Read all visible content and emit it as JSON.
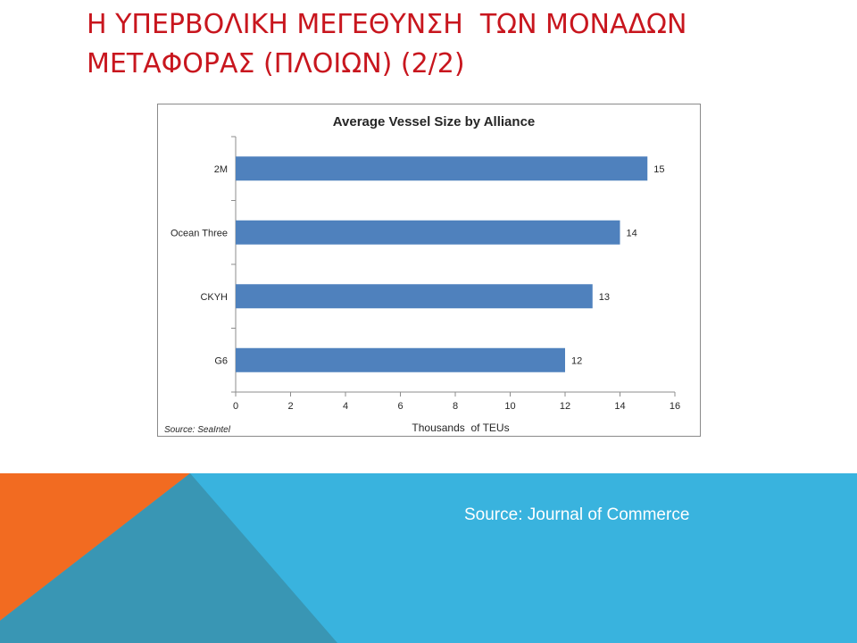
{
  "slide": {
    "title_lines": [
      "Η ΥΠΕΡΒΟΛΙΚΗ ΜΕΓΕΘΥΝΣΗ  ΤΩΝ ΜΟΝΑΔΩΝ",
      "ΜΕΤΑΦΟΡΑΣ (ΠΛΟΙΩΝ) (2/2)"
    ],
    "source_caption": "Source: Journal of Commerce",
    "colors": {
      "title": "#c8161e",
      "orange": "#f26b21",
      "blue": "#39b3de",
      "teal": "#3996b4"
    }
  },
  "chart_data": {
    "type": "bar",
    "orientation": "horizontal",
    "title": "Average Vessel Size by Alliance",
    "xlabel": "Thousands  of TEUs",
    "ylabel": "",
    "categories": [
      "2M",
      "Ocean Three",
      "CKYH",
      "G6"
    ],
    "values": [
      15,
      14,
      13,
      12
    ],
    "data_labels": [
      "15",
      "14",
      "13",
      "12"
    ],
    "xlim": [
      0,
      16
    ],
    "xticks": [
      0,
      2,
      4,
      6,
      8,
      10,
      12,
      14,
      16
    ],
    "grid": false,
    "legend": "none",
    "bar_color": "#4f81bd",
    "source_note": "Source: SeaIntel"
  }
}
